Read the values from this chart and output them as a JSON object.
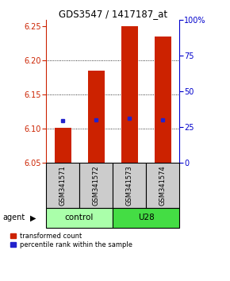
{
  "title": "GDS3547 / 1417187_at",
  "samples": [
    "GSM341571",
    "GSM341572",
    "GSM341573",
    "GSM341574"
  ],
  "bar_base": 6.05,
  "bar_tops": [
    6.102,
    6.185,
    6.25,
    6.235
  ],
  "blue_y": [
    6.112,
    6.113,
    6.115,
    6.113
  ],
  "ylim": [
    6.05,
    6.26
  ],
  "yticks_left": [
    6.05,
    6.1,
    6.15,
    6.2,
    6.25
  ],
  "yticks_right": [
    0,
    25,
    50,
    75,
    100
  ],
  "ytick_right_labels": [
    "0",
    "25",
    "50",
    "75",
    "100%"
  ],
  "bar_color": "#cc2200",
  "blue_color": "#2222cc",
  "bar_width": 0.5,
  "groups": [
    {
      "label": "control",
      "indices": [
        0,
        1
      ],
      "color": "#aaffaa"
    },
    {
      "label": "U28",
      "indices": [
        2,
        3
      ],
      "color": "#44dd44"
    }
  ],
  "legend_red": "transformed count",
  "legend_blue": "percentile rank within the sample",
  "background_sample": "#cccccc",
  "right_axis_color": "#0000cc",
  "left_axis_color": "#cc2200"
}
